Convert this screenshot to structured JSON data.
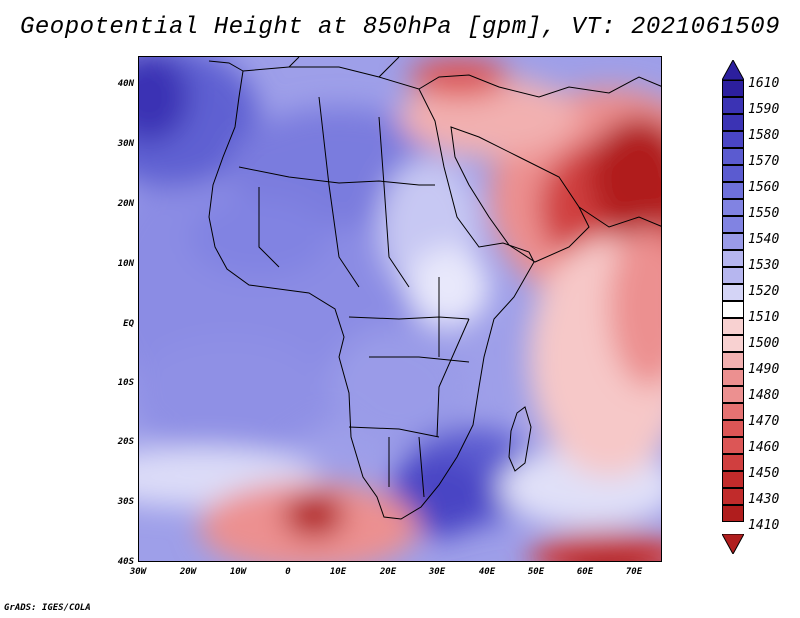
{
  "title": "Geopotential Height at 850hPa [gpm], VT: 2021061509",
  "credit": "GrADS: IGES/COLA",
  "lat_labels": [
    "40N",
    "30N",
    "20N",
    "10N",
    "EQ",
    "10S",
    "20S",
    "30S",
    "40S"
  ],
  "lon_labels": [
    "30W",
    "20W",
    "10W",
    "0",
    "10E",
    "20E",
    "30E",
    "40E",
    "50E",
    "60E",
    "70E"
  ],
  "colorbar": {
    "levels": [
      "1610",
      "1590",
      "1580",
      "1570",
      "1560",
      "1550",
      "1540",
      "1530",
      "1520",
      "1510",
      "1500",
      "1490",
      "1480",
      "1470",
      "1460",
      "1450",
      "1430",
      "1410"
    ],
    "colors": [
      "#2c1f9e",
      "#3b33b4",
      "#4a45c4",
      "#5b5bd0",
      "#6e70da",
      "#8183e2",
      "#9a9be8",
      "#b6b6ef",
      "#d4d4f6",
      "#ffffff",
      "#f8d1d1",
      "#f2b0b0",
      "#ec9090",
      "#e57272",
      "#dc5656",
      "#d03f3f",
      "#c12b2b",
      "#b01d1d"
    ]
  }
}
